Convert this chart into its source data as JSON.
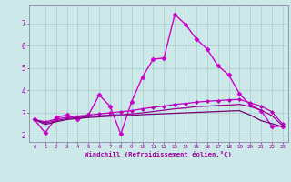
{
  "xlabel": "Windchill (Refroidissement éolien,°C)",
  "background_color": "#cce8e8",
  "grid_color": "#aacccc",
  "line_colors": [
    "#cc00cc",
    "#bb00bb",
    "#990099",
    "#770077"
  ],
  "xlim": [
    -0.5,
    23.5
  ],
  "ylim": [
    1.7,
    7.8
  ],
  "xticks": [
    0,
    1,
    2,
    3,
    4,
    5,
    6,
    7,
    8,
    9,
    10,
    11,
    12,
    13,
    14,
    15,
    16,
    17,
    18,
    19,
    20,
    21,
    22,
    23
  ],
  "yticks": [
    2,
    3,
    4,
    5,
    6,
    7
  ],
  "tick_color": "#990099",
  "series": [
    {
      "x": [
        0,
        1,
        2,
        3,
        4,
        5,
        6,
        7,
        8,
        9,
        10,
        11,
        12,
        13,
        14,
        15,
        16,
        17,
        18,
        19,
        20,
        21,
        22,
        23
      ],
      "y": [
        2.7,
        2.1,
        2.8,
        2.9,
        2.7,
        2.9,
        3.8,
        3.3,
        2.05,
        3.5,
        4.6,
        5.4,
        5.45,
        7.4,
        6.95,
        6.3,
        5.85,
        5.1,
        4.7,
        3.85,
        3.35,
        3.1,
        2.4,
        2.4
      ],
      "marker": "D",
      "markersize": 2.5,
      "linewidth": 1.0
    },
    {
      "x": [
        0,
        1,
        2,
        3,
        4,
        5,
        6,
        7,
        8,
        9,
        10,
        11,
        12,
        13,
        14,
        15,
        16,
        17,
        18,
        19,
        20,
        21,
        22,
        23
      ],
      "y": [
        2.7,
        2.6,
        2.72,
        2.8,
        2.85,
        2.9,
        2.95,
        3.0,
        3.05,
        3.1,
        3.18,
        3.25,
        3.3,
        3.38,
        3.42,
        3.48,
        3.52,
        3.55,
        3.58,
        3.6,
        3.45,
        3.3,
        3.05,
        2.5
      ],
      "marker": "D",
      "markersize": 2.0,
      "linewidth": 0.9
    },
    {
      "x": [
        0,
        1,
        2,
        3,
        4,
        5,
        6,
        7,
        8,
        9,
        10,
        11,
        12,
        13,
        14,
        15,
        16,
        17,
        18,
        19,
        20,
        21,
        22,
        23
      ],
      "y": [
        2.7,
        2.55,
        2.65,
        2.74,
        2.79,
        2.84,
        2.87,
        2.9,
        2.92,
        2.95,
        3.0,
        3.06,
        3.12,
        3.18,
        3.22,
        3.28,
        3.3,
        3.33,
        3.35,
        3.38,
        3.28,
        3.12,
        2.88,
        2.42
      ],
      "marker": null,
      "markersize": 0,
      "linewidth": 0.9
    },
    {
      "x": [
        0,
        1,
        2,
        3,
        4,
        5,
        6,
        7,
        8,
        9,
        10,
        11,
        12,
        13,
        14,
        15,
        16,
        17,
        18,
        19,
        20,
        21,
        22,
        23
      ],
      "y": [
        2.7,
        2.48,
        2.6,
        2.7,
        2.75,
        2.79,
        2.82,
        2.85,
        2.87,
        2.89,
        2.92,
        2.94,
        2.96,
        2.98,
        3.0,
        3.02,
        3.04,
        3.06,
        3.08,
        3.1,
        2.9,
        2.65,
        2.52,
        2.38
      ],
      "marker": null,
      "markersize": 0,
      "linewidth": 0.9
    }
  ]
}
